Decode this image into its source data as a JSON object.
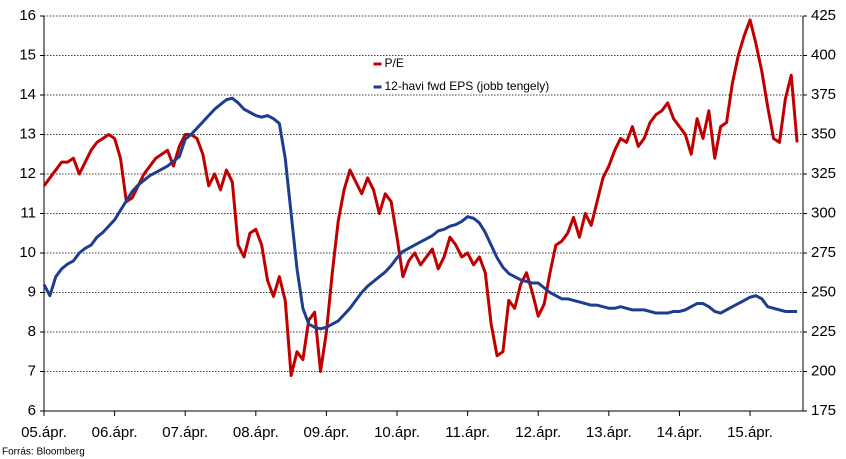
{
  "chart_data": {
    "type": "line",
    "x": [
      "2005-04",
      "2005-05",
      "2005-06",
      "2005-07",
      "2005-08",
      "2005-09",
      "2005-10",
      "2005-11",
      "2005-12",
      "2006-01",
      "2006-02",
      "2006-03",
      "2006-04",
      "2006-05",
      "2006-06",
      "2006-07",
      "2006-08",
      "2006-09",
      "2006-10",
      "2006-11",
      "2006-12",
      "2007-01",
      "2007-02",
      "2007-03",
      "2007-04",
      "2007-05",
      "2007-06",
      "2007-07",
      "2007-08",
      "2007-09",
      "2007-10",
      "2007-11",
      "2007-12",
      "2008-01",
      "2008-02",
      "2008-03",
      "2008-04",
      "2008-05",
      "2008-06",
      "2008-07",
      "2008-08",
      "2008-09",
      "2008-10",
      "2008-11",
      "2008-12",
      "2009-01",
      "2009-02",
      "2009-03",
      "2009-04",
      "2009-05",
      "2009-06",
      "2009-07",
      "2009-08",
      "2009-09",
      "2009-10",
      "2009-11",
      "2009-12",
      "2010-01",
      "2010-02",
      "2010-03",
      "2010-04",
      "2010-05",
      "2010-06",
      "2010-07",
      "2010-08",
      "2010-09",
      "2010-10",
      "2010-11",
      "2010-12",
      "2011-01",
      "2011-02",
      "2011-03",
      "2011-04",
      "2011-05",
      "2011-06",
      "2011-07",
      "2011-08",
      "2011-09",
      "2011-10",
      "2011-11",
      "2011-12",
      "2012-01",
      "2012-02",
      "2012-03",
      "2012-04",
      "2012-05",
      "2012-06",
      "2012-07",
      "2012-08",
      "2012-09",
      "2012-10",
      "2012-11",
      "2012-12",
      "2013-01",
      "2013-02",
      "2013-03",
      "2013-04",
      "2013-05",
      "2013-06",
      "2013-07",
      "2013-08",
      "2013-09",
      "2013-10",
      "2013-11",
      "2013-12",
      "2014-01",
      "2014-02",
      "2014-03",
      "2014-04",
      "2014-05",
      "2014-06",
      "2014-07",
      "2014-08",
      "2014-09",
      "2014-10",
      "2014-11",
      "2014-12",
      "2015-01",
      "2015-02",
      "2015-03",
      "2015-04",
      "2015-05",
      "2015-06",
      "2015-07",
      "2015-08",
      "2015-09",
      "2015-10",
      "2015-11",
      "2015-12"
    ],
    "xlim": [
      "2005-04",
      "2016-01"
    ],
    "xticks": [
      {
        "value": "2005-04",
        "label": "05.ápr."
      },
      {
        "value": "2006-04",
        "label": "06.ápr."
      },
      {
        "value": "2007-04",
        "label": "07.ápr."
      },
      {
        "value": "2008-04",
        "label": "08.ápr."
      },
      {
        "value": "2009-04",
        "label": "09.ápr."
      },
      {
        "value": "2010-04",
        "label": "10.ápr."
      },
      {
        "value": "2011-04",
        "label": "11.ápr."
      },
      {
        "value": "2012-04",
        "label": "12.ápr."
      },
      {
        "value": "2013-04",
        "label": "13.ápr."
      },
      {
        "value": "2014-04",
        "label": "14.ápr."
      },
      {
        "value": "2015-04",
        "label": "15.ápr."
      }
    ],
    "ylim": [
      6,
      16
    ],
    "yticks": [
      6,
      7,
      8,
      9,
      10,
      11,
      12,
      13,
      14,
      15,
      16
    ],
    "y2lim": [
      175,
      425
    ],
    "y2ticks": [
      175,
      200,
      225,
      250,
      275,
      300,
      325,
      350,
      375,
      400,
      425
    ],
    "grid": true,
    "legend": "upper center",
    "series": [
      {
        "name": "P/E",
        "color": "#c00000",
        "values": [
          11.7,
          11.9,
          12.1,
          12.3,
          12.3,
          12.4,
          12.0,
          12.3,
          12.6,
          12.8,
          12.9,
          13.0,
          12.9,
          12.4,
          11.3,
          11.4,
          11.7,
          12.0,
          12.2,
          12.4,
          12.5,
          12.6,
          12.2,
          12.7,
          13.0,
          13.0,
          12.9,
          12.5,
          11.7,
          12.0,
          11.6,
          12.1,
          11.8,
          10.2,
          9.9,
          10.5,
          10.6,
          10.2,
          9.3,
          8.9,
          9.4,
          8.8,
          6.9,
          7.5,
          7.3,
          8.3,
          8.5,
          7.0,
          8.0,
          9.5,
          10.8,
          11.6,
          12.1,
          11.8,
          11.5,
          11.9,
          11.6,
          11.0,
          11.5,
          11.3,
          10.4,
          9.4,
          9.8,
          10.0,
          9.7,
          9.9,
          10.1,
          9.6,
          9.9,
          10.4,
          10.2,
          9.9,
          10.0,
          9.7,
          9.9,
          9.5,
          8.2,
          7.4,
          7.5,
          8.8,
          8.6,
          9.2,
          9.5,
          9.0,
          8.4,
          8.7,
          9.5,
          10.2,
          10.3,
          10.5,
          10.9,
          10.4,
          11.0,
          10.7,
          11.3,
          11.9,
          12.2,
          12.6,
          12.9,
          12.8,
          13.2,
          12.7,
          12.9,
          13.3,
          13.5,
          13.6,
          13.8,
          13.4,
          13.2,
          13.0,
          12.5,
          13.4,
          12.9,
          13.6,
          12.4,
          13.2,
          13.3,
          14.3,
          15.0,
          15.5,
          15.9,
          15.3,
          14.6,
          13.7,
          12.9,
          12.8,
          13.9,
          14.5,
          12.8
        ]
      },
      {
        "name": "12-havi fwd EPS (jobb tengely)",
        "color": "#1f3d8f",
        "axis": "y2",
        "values": [
          255,
          248,
          260,
          265,
          268,
          270,
          275,
          278,
          280,
          285,
          288,
          292,
          296,
          302,
          308,
          314,
          318,
          321,
          324,
          326,
          328,
          330,
          333,
          336,
          347,
          350,
          354,
          358,
          362,
          366,
          369,
          372,
          373,
          370,
          366,
          364,
          362,
          361,
          362,
          360,
          357,
          335,
          300,
          265,
          240,
          230,
          228,
          227,
          228,
          230,
          232,
          236,
          240,
          245,
          250,
          254,
          257,
          260,
          263,
          267,
          272,
          276,
          278,
          280,
          282,
          284,
          286,
          289,
          290,
          292,
          293,
          295,
          298,
          297,
          294,
          288,
          280,
          272,
          266,
          262,
          260,
          258,
          257,
          256,
          256,
          253,
          250,
          248,
          246,
          246,
          245,
          244,
          243,
          242,
          242,
          241,
          240,
          240,
          241,
          240,
          239,
          239,
          239,
          238,
          237,
          237,
          237,
          238,
          238,
          239,
          241,
          243,
          243,
          241,
          238,
          237,
          239,
          241,
          243,
          245,
          247,
          248,
          246,
          241,
          240,
          239,
          238,
          238,
          238
        ]
      }
    ],
    "source": "Forrás: Bloomberg"
  }
}
